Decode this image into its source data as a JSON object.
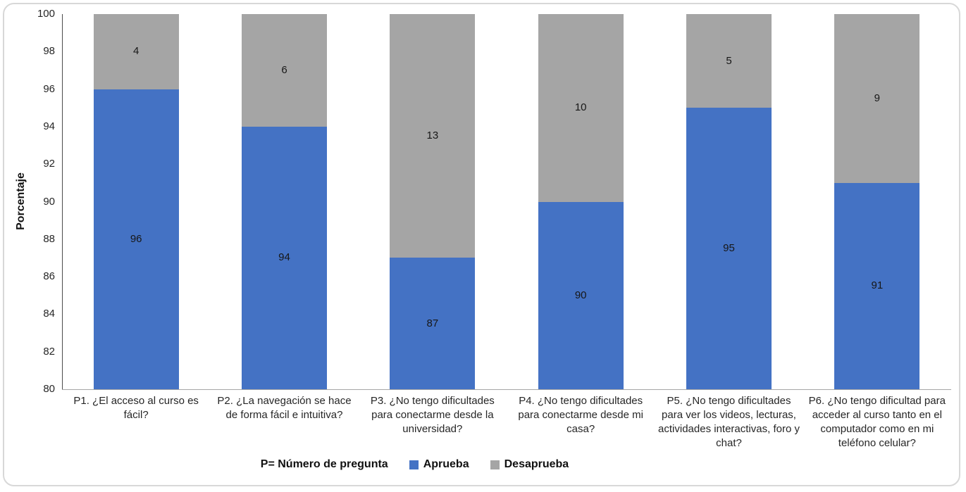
{
  "chart_data": {
    "type": "bar",
    "stacked": true,
    "orientation": "vertical",
    "title": "",
    "xlabel": "",
    "ylabel": "Porcentaje",
    "ylim": [
      80,
      100
    ],
    "ytick_step": 2,
    "grid": false,
    "legend_position": "bottom",
    "legend_note": "P= Número de pregunta",
    "categories": [
      "P1. ¿El acceso al curso es fácil?",
      "P2. ¿La navegación se hace de forma fácil e intuitiva?",
      "P3. ¿No tengo dificultades para conectarme  desde la universidad?",
      "P4. ¿No tengo dificultades para conectarme  desde mi casa?",
      "P5. ¿No tengo dificultades para ver los videos, lecturas, actividades interactivas, foro y chat?",
      "P6. ¿No tengo dificultad para acceder al curso  tanto en el computador como en mi teléfono celular?"
    ],
    "series": [
      {
        "name": "Aprueba",
        "color": "#4472C4",
        "values": [
          96,
          94,
          87,
          90,
          95,
          91
        ]
      },
      {
        "name": "Desaprueba",
        "color": "#A5A5A5",
        "values": [
          4,
          6,
          13,
          10,
          5,
          9
        ]
      }
    ],
    "data_labels": true,
    "data_label_color": "#171717",
    "axis_line_color": "#4a4a4a",
    "baseline_color": "#a6a6a6",
    "frame_border_color": "#d8d8d8"
  }
}
